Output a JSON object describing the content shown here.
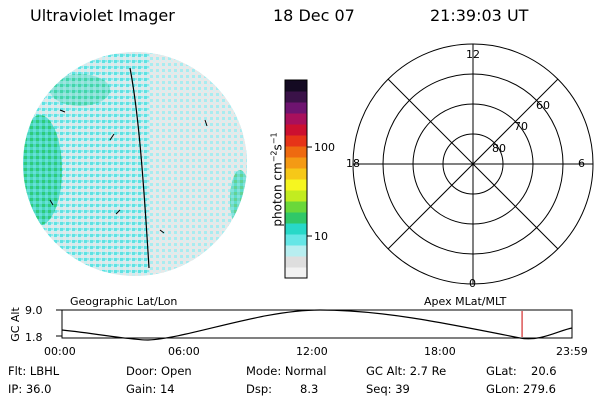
{
  "header": {
    "instrument": "Ultraviolet Imager",
    "date": "18 Dec 07",
    "time": "21:39:03 UT"
  },
  "colorbar": {
    "unit": "photon cm",
    "unit_sup1": "−2",
    "unit_mid": "s",
    "unit_sup2": "−1",
    "ticks": [
      {
        "label": "100",
        "value": 100
      },
      {
        "label": "10",
        "value": 10
      }
    ],
    "colors": [
      "#f2f2f2",
      "#dedede",
      "#b8eef0",
      "#66e6e6",
      "#28d8c8",
      "#30c868",
      "#6ad83a",
      "#c2ec20",
      "#f6f620",
      "#f6c818",
      "#f49a14",
      "#ee6a10",
      "#e63418",
      "#cc1030",
      "#a8105c",
      "#6e1470",
      "#3a1248",
      "#140a22"
    ]
  },
  "polar_plot": {
    "labels": {
      "top": "12",
      "left": "18",
      "right": "6",
      "bottom": "0",
      "lat60": "60",
      "lat70": "70",
      "lat80": "80"
    }
  },
  "left_caption": "Geographic Lat/Lon",
  "right_caption": "Apex MLat/MLT",
  "altitude_chart": {
    "ylabel": "GC Alt",
    "y_ticks": [
      "9.0",
      "1.8"
    ],
    "x_ticks": [
      "00:00",
      "06:00",
      "12:00",
      "18:00",
      "23:59"
    ],
    "marker_time": "21:39",
    "marker_color": "#cc0000"
  },
  "info": {
    "flt": "Flt: LBHL",
    "ip": "IP: 36.0",
    "door": "Door: Open",
    "gain": "Gain: 14",
    "mode": "Mode: Normal",
    "dsp_label": "Dsp:",
    "dsp_value": "8.3",
    "gcalt": "GC Alt: 2.7 Re",
    "seq": "Seq: 39",
    "glat_label": "GLat:",
    "glat_value": "20.6",
    "glon": "GLon: 279.6"
  }
}
